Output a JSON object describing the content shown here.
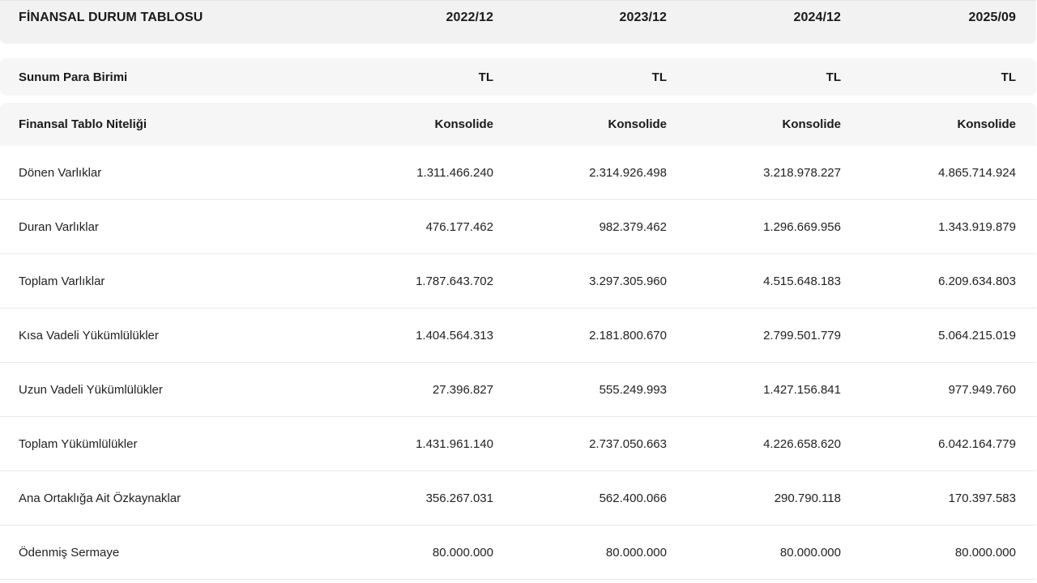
{
  "header": {
    "title": "FİNANSAL DURUM TABLOSU",
    "periods": [
      "2022/12",
      "2023/12",
      "2024/12",
      "2025/09"
    ]
  },
  "meta_rows": [
    {
      "label": "Sunum Para Birimi",
      "values": [
        "TL",
        "TL",
        "TL",
        "TL"
      ]
    },
    {
      "label": "Finansal Tablo Niteliği",
      "values": [
        "Konsolide",
        "Konsolide",
        "Konsolide",
        "Konsolide"
      ]
    }
  ],
  "rows": [
    {
      "label": "Dönen Varlıklar",
      "values": [
        "1.311.466.240",
        "2.314.926.498",
        "3.218.978.227",
        "4.865.714.924"
      ]
    },
    {
      "label": "Duran Varlıklar",
      "values": [
        "476.177.462",
        "982.379.462",
        "1.296.669.956",
        "1.343.919.879"
      ]
    },
    {
      "label": "Toplam Varlıklar",
      "values": [
        "1.787.643.702",
        "3.297.305.960",
        "4.515.648.183",
        "6.209.634.803"
      ]
    },
    {
      "label": "Kısa Vadeli Yükümlülükler",
      "values": [
        "1.404.564.313",
        "2.181.800.670",
        "2.799.501.779",
        "5.064.215.019"
      ]
    },
    {
      "label": "Uzun Vadeli Yükümlülükler",
      "values": [
        "27.396.827",
        "555.249.993",
        "1.427.156.841",
        "977.949.760"
      ]
    },
    {
      "label": "Toplam Yükümlülükler",
      "values": [
        "1.431.961.140",
        "2.737.050.663",
        "4.226.658.620",
        "6.042.164.779"
      ]
    },
    {
      "label": "Ana Ortaklığa Ait Özkaynaklar",
      "values": [
        "356.267.031",
        "562.400.066",
        "290.790.118",
        "170.397.583"
      ]
    },
    {
      "label": "Ödenmiş Sermaye",
      "values": [
        "80.000.000",
        "80.000.000",
        "80.000.000",
        "80.000.000"
      ]
    }
  ]
}
